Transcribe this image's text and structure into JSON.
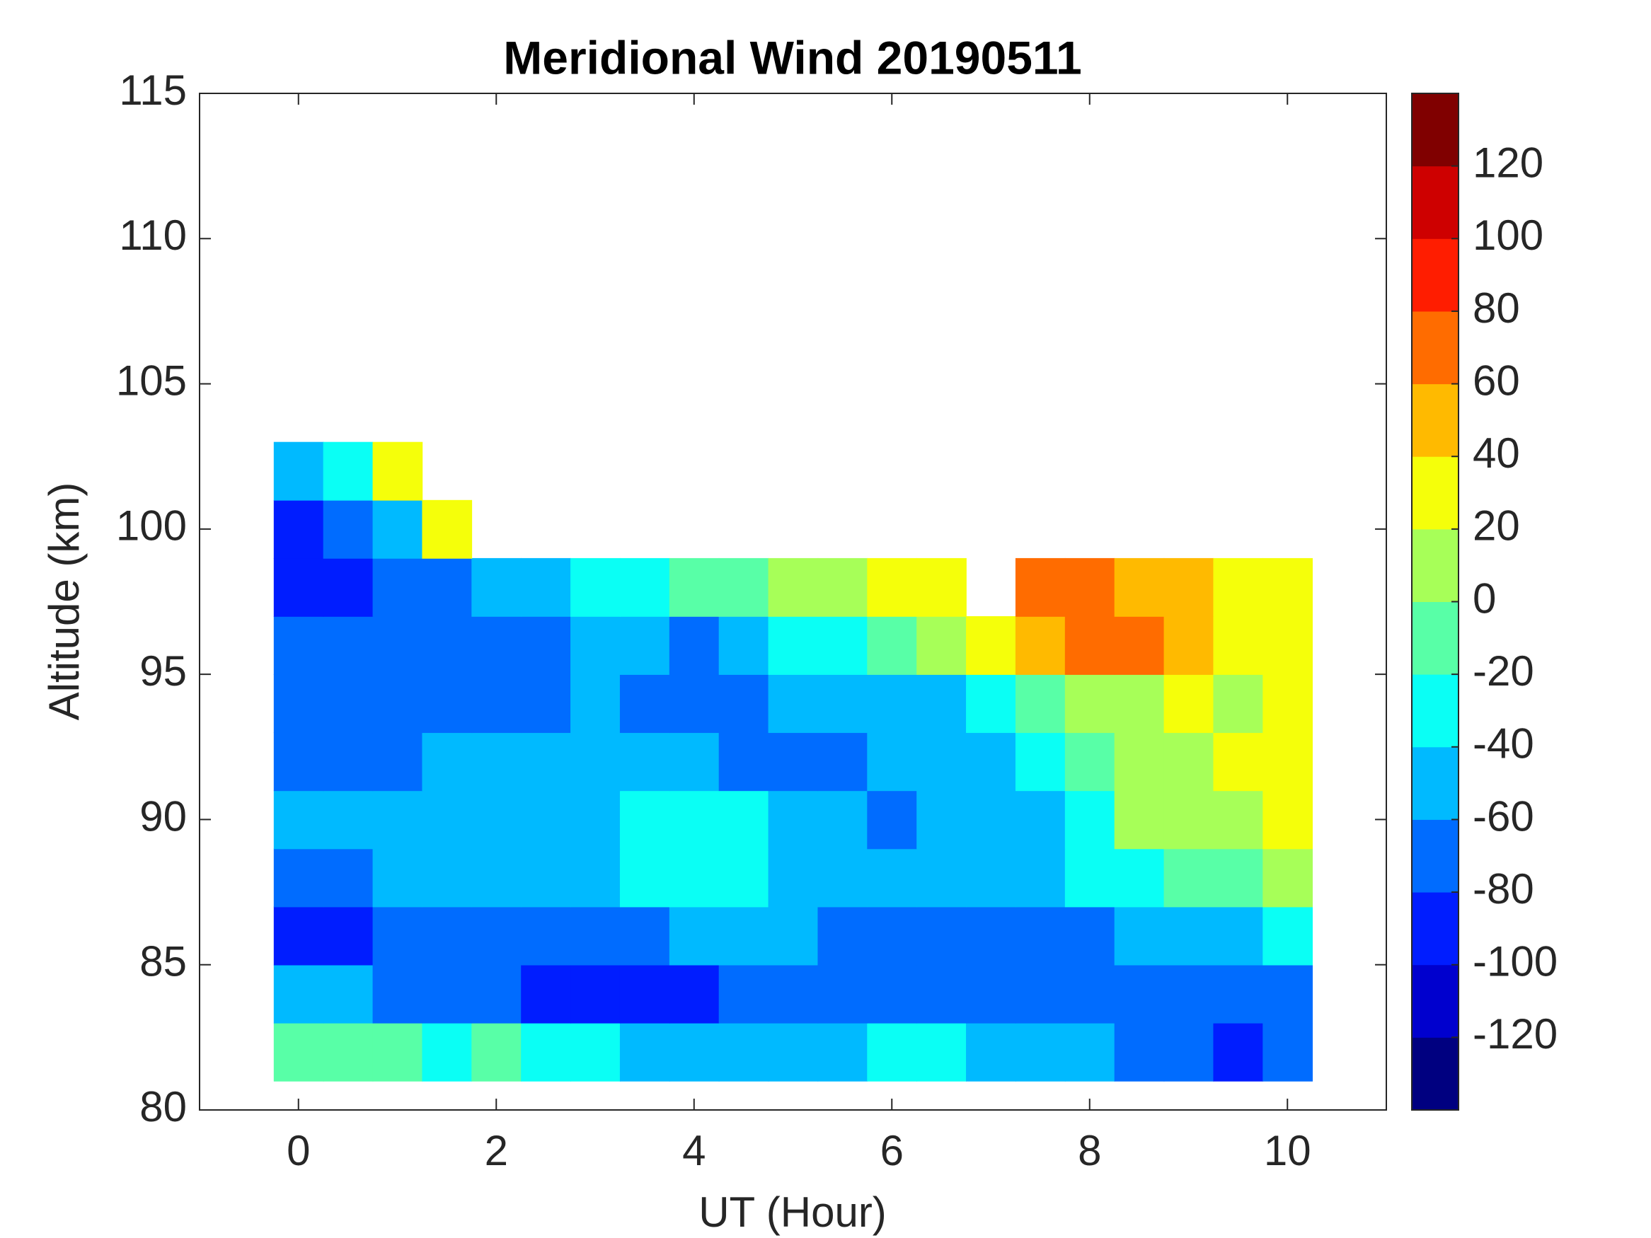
{
  "chart_data": {
    "type": "contour",
    "title": "Meridional Wind 20190511",
    "xlabel": "UT (Hour)",
    "ylabel": "Altitude (km)",
    "xlim": [
      -1,
      11
    ],
    "ylim": [
      80,
      115
    ],
    "xticks": [
      0,
      2,
      4,
      6,
      8,
      10
    ],
    "yticks": [
      80,
      85,
      90,
      95,
      100,
      105,
      110,
      115
    ],
    "clim": [
      -140,
      140
    ],
    "cticks": [
      -120,
      -100,
      -80,
      -60,
      -40,
      -20,
      0,
      20,
      40,
      60,
      80,
      100,
      120
    ],
    "levels": [
      -140,
      -120,
      -100,
      -80,
      -60,
      -40,
      -20,
      0,
      20,
      40,
      60,
      80,
      100,
      120,
      140
    ],
    "colormap": "jet",
    "x": [
      0,
      0.5,
      1,
      1.5,
      2,
      2.5,
      3,
      3.5,
      4,
      4.5,
      5,
      5.5,
      6,
      6.5,
      7,
      7.5,
      8,
      8.5,
      9,
      9.5,
      10
    ],
    "y": [
      82,
      84,
      86,
      88,
      90,
      92,
      94,
      96,
      98,
      100,
      102
    ],
    "z": [
      [
        -10,
        -20,
        -10,
        -30,
        -20,
        -40,
        -30,
        -50,
        -50,
        -60,
        -50,
        -60,
        -40,
        -40,
        -50,
        -60,
        -60,
        -70,
        -80,
        -90,
        -80
      ],
      [
        -60,
        -60,
        -70,
        -80,
        -75,
        -85,
        -90,
        -90,
        -85,
        -75,
        -80,
        -70,
        -70,
        -75,
        -75,
        -70,
        -70,
        -70,
        -70,
        -75,
        -65
      ],
      [
        -90,
        -85,
        -75,
        -70,
        -75,
        -80,
        -70,
        -65,
        -60,
        -55,
        -60,
        -65,
        -70,
        -70,
        -75,
        -70,
        -65,
        -60,
        -55,
        -45,
        -40
      ],
      [
        -65,
        -65,
        -60,
        -60,
        -55,
        -55,
        -50,
        -40,
        -30,
        -35,
        -45,
        -45,
        -60,
        -60,
        -60,
        -50,
        -40,
        -35,
        -20,
        -5,
        5
      ],
      [
        -55,
        -55,
        -55,
        -50,
        -55,
        -50,
        -45,
        -30,
        -35,
        -40,
        -50,
        -60,
        -65,
        -60,
        -55,
        -45,
        -30,
        10,
        15,
        10,
        20
      ],
      [
        -70,
        -65,
        -65,
        -60,
        -55,
        -50,
        -45,
        -45,
        -55,
        -65,
        -65,
        -70,
        -50,
        -50,
        -45,
        -40,
        -20,
        10,
        15,
        20,
        20
      ],
      [
        -70,
        -70,
        -65,
        -70,
        -70,
        -65,
        -60,
        -65,
        -75,
        -70,
        -55,
        -50,
        -45,
        -50,
        -30,
        -10,
        5,
        15,
        20,
        15,
        20
      ],
      [
        -75,
        -80,
        -80,
        -75,
        -75,
        -65,
        -55,
        -60,
        -65,
        -55,
        -40,
        -30,
        -10,
        0,
        20,
        50,
        65,
        70,
        50,
        30,
        20
      ],
      [
        -90,
        -85,
        -70,
        -65,
        -60,
        -55,
        -40,
        -30,
        -20,
        -10,
        0,
        10,
        20,
        30,
        null,
        60,
        60,
        50,
        40,
        30,
        20
      ],
      [
        -85,
        -75,
        -50,
        20,
        null,
        null,
        null,
        null,
        null,
        null,
        null,
        null,
        null,
        null,
        null,
        null,
        null,
        null,
        null,
        null,
        null
      ],
      [
        -55,
        -40,
        30,
        null,
        null,
        null,
        null,
        null,
        null,
        null,
        null,
        null,
        null,
        null,
        null,
        null,
        null,
        null,
        null,
        null,
        null
      ]
    ]
  }
}
